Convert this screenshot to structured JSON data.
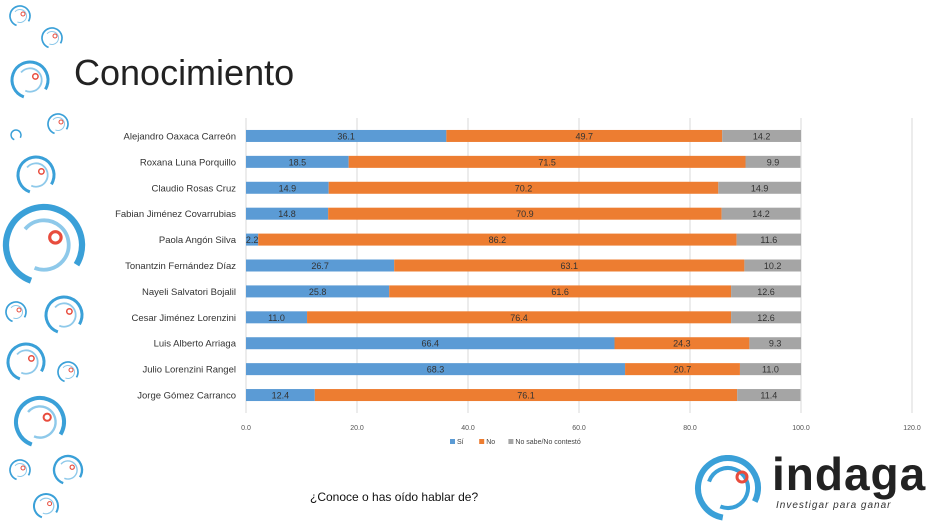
{
  "header": {
    "title": "Conocimiento"
  },
  "footer": {
    "question": "¿Conoce o has oído hablar de?"
  },
  "logo": {
    "word": "indaga",
    "tagline": "Investigar para ganar"
  },
  "colors": {
    "si": "#5b9bd5",
    "no": "#ed7d31",
    "ns": "#a5a5a5",
    "ring": "#3aa0d8",
    "dot": "#e84c3d"
  },
  "chart_data": {
    "type": "bar",
    "orientation": "horizontal",
    "stacked": true,
    "categories": [
      "Alejandro Oaxaca Carreón",
      "Roxana Luna Porquillo",
      "Claudio Rosas Cruz",
      "Fabian Jiménez Covarrubias",
      "Paola Angón Silva",
      "Tonantzin Fernández Díaz",
      "Nayeli Salvatori Bojalil",
      "Cesar Jiménez Lorenzini",
      "Luis Alberto Arriaga",
      "Julio Lorenzini Rangel",
      "Jorge Gómez Carranco"
    ],
    "series": [
      {
        "name": "Sí",
        "values": [
          36.1,
          18.5,
          14.9,
          14.8,
          2.2,
          26.7,
          25.8,
          11.0,
          66.4,
          68.3,
          12.4
        ]
      },
      {
        "name": "No",
        "values": [
          49.7,
          71.5,
          70.2,
          70.9,
          86.2,
          63.1,
          61.6,
          76.4,
          24.3,
          20.7,
          76.1
        ]
      },
      {
        "name": "No sabe/No contestó",
        "values": [
          14.2,
          9.9,
          14.9,
          14.2,
          11.6,
          10.2,
          12.6,
          12.6,
          9.3,
          11.0,
          11.4
        ]
      }
    ],
    "xlim": [
      0,
      120
    ],
    "xticks": [
      "0.0",
      "20.0",
      "40.0",
      "60.0",
      "80.0",
      "100.0",
      "120.0"
    ],
    "grid": true,
    "legend": "bottom"
  }
}
